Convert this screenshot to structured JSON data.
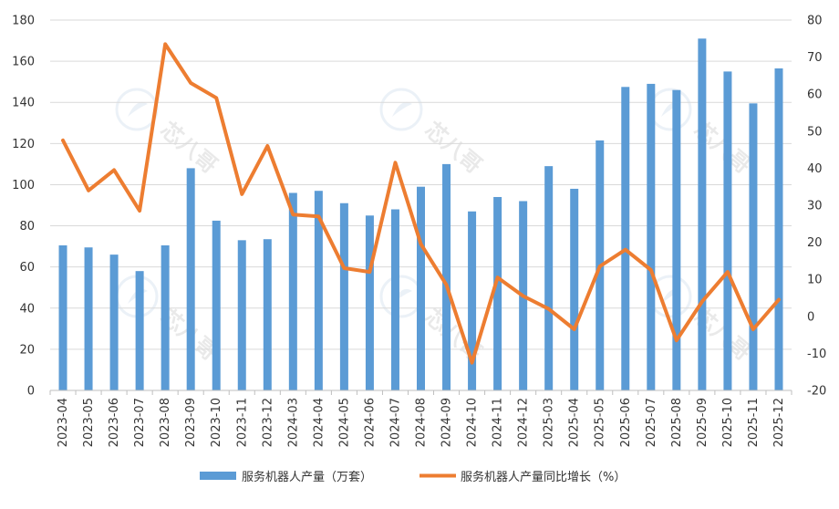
{
  "chart_data": {
    "type": "bar",
    "categories": [
      "2023-04",
      "2023-05",
      "2023-06",
      "2023-07",
      "2023-08",
      "2023-09",
      "2023-10",
      "2023-11",
      "2023-12",
      "2024-03",
      "2024-04",
      "2024-05",
      "2024-06",
      "2024-07",
      "2024-08",
      "2024-09",
      "2024-10",
      "2024-11",
      "2024-12",
      "2025-03",
      "2025-04",
      "2025-05",
      "2025-06",
      "2025-07",
      "2025-08",
      "2025-09",
      "2025-10",
      "2025-11",
      "2025-12"
    ],
    "series": [
      {
        "name": "服务机器人产量（万套）",
        "type": "bar",
        "axis": "left",
        "color": "#5b9bd5",
        "values": [
          70.5,
          69.5,
          66,
          58,
          70.5,
          108,
          82.5,
          73,
          73.5,
          96,
          97,
          91,
          85,
          88,
          99,
          110,
          87,
          94,
          92,
          109,
          98,
          121.5,
          147.5,
          149,
          146,
          171,
          155,
          139.5,
          156.5
        ]
      },
      {
        "name": "服务机器人产量同比增长（%）",
        "type": "line",
        "axis": "right",
        "color": "#ed7d31",
        "values": [
          47.5,
          34,
          39.5,
          28.5,
          73.5,
          63,
          59,
          33,
          46,
          27.5,
          27,
          13,
          12,
          41.5,
          19.5,
          8.5,
          -12.5,
          10.5,
          5.5,
          2,
          -3.5,
          13.5,
          18,
          12.5,
          -6.5,
          4,
          12,
          -3.5,
          4.5
        ]
      }
    ],
    "ylim": [
      0,
      180
    ],
    "y_ticks": [
      "0",
      "20",
      "40",
      "60",
      "80",
      "100",
      "120",
      "140",
      "160",
      "180"
    ],
    "y2lim": [
      -20,
      80
    ],
    "y2_ticks": [
      "-20",
      "-10",
      "0",
      "10",
      "20",
      "30",
      "40",
      "50",
      "60",
      "70",
      "80"
    ],
    "grid": true,
    "legend_position": "bottom",
    "watermark_text": "芯八哥"
  }
}
